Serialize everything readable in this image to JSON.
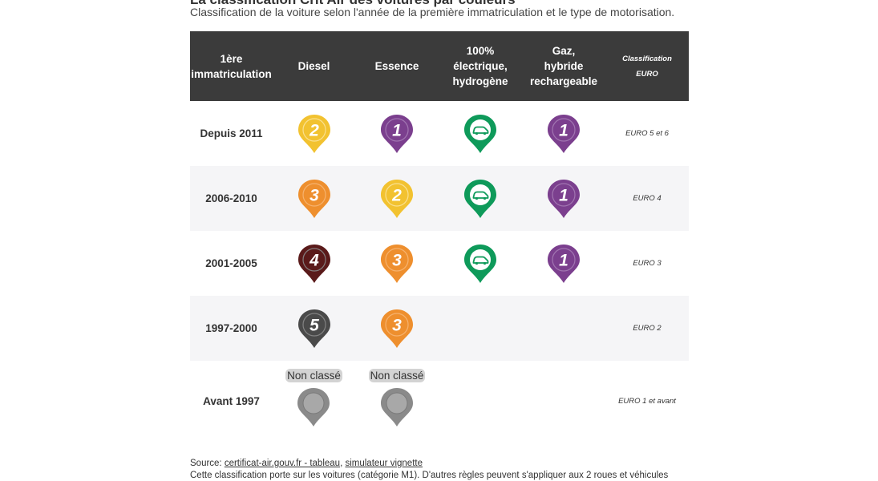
{
  "title": "La classification Crit'Air des voitures par couleurs",
  "subtitle": "Classification de la voiture selon l'année de la première immatriculation et le type de motorisation.",
  "headers": {
    "year": "1ère\nimmatriculation",
    "diesel": "Diesel",
    "essence": "Essence",
    "electrique": "100%\nélectrique,\nhydrogène",
    "gaz": "Gaz,\nhybride\nrechargeable",
    "euro": "Classification\nEURO"
  },
  "colors": {
    "crit1": "#7b3f8e",
    "crit2": "#f2c230",
    "crit3": "#ee8f2e",
    "crit4": "#5a1a1a",
    "crit5": "#4a4a4a",
    "elec": "#0e9a5a",
    "nonclasse": "#8a8a8a",
    "header_bg": "#3b3b3b"
  },
  "rows": [
    {
      "year": "Depuis 2011",
      "diesel": "2",
      "essence": "1",
      "electrique": "e",
      "gaz": "1",
      "euro": "EURO 5 et 6"
    },
    {
      "year": "2006-2010",
      "diesel": "3",
      "essence": "2",
      "electrique": "e",
      "gaz": "1",
      "euro": "EURO 4"
    },
    {
      "year": "2001-2005",
      "diesel": "4",
      "essence": "3",
      "electrique": "e",
      "gaz": "1",
      "euro": "EURO 3"
    },
    {
      "year": "1997-2000",
      "diesel": "5",
      "essence": "3",
      "electrique": "",
      "gaz": "",
      "euro": "EURO 2"
    },
    {
      "year": "Avant 1997",
      "diesel": "nc",
      "essence": "nc",
      "electrique": "",
      "gaz": "",
      "euro": "EURO 1 et avant"
    }
  ],
  "non_classe_label": "Non classé",
  "source": {
    "prefix": "Source: ",
    "link1": "certificat-air.gouv.fr - tableau",
    "sep": ", ",
    "link2": "simulateur vignette"
  },
  "note": "Cette classification porte sur les voitures (catégorie M1). D'autres règles peuvent s'appliquer aux 2 roues et véhicules"
}
